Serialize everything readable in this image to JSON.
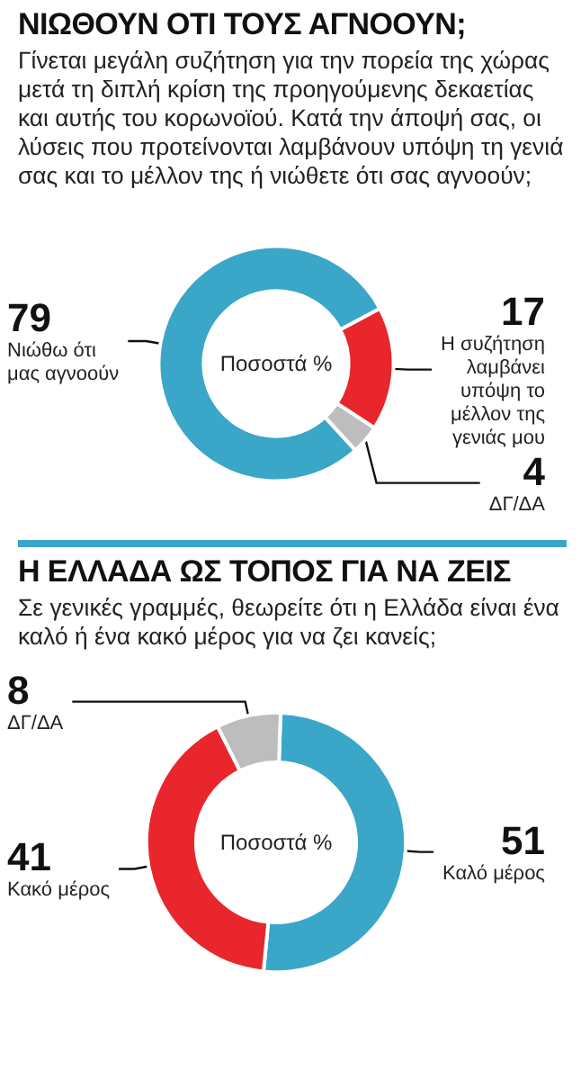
{
  "chart_data": [
    {
      "type": "donut",
      "title": "ΝΙΩΘΟΥΝ ΟΤΙ ΤΟΥΣ ΑΓΝΟΟΥΝ;",
      "subtitle": "Γίνεται μεγάλη συζήτηση για την πορεία της χώρας μετά τη διπλή κρίση της προηγούμενης δεκαετίας και αυτής του κορωνοϊού. Κατά την άποψή σας, οι λύσεις που προτείνονται λαμβάνουν υπόψη τη γενιά σας και το μέλλον της ή νιώθετε ότι σας αγνοούν;",
      "categories": [
        "Η συζήτηση λαμβάνει υπόψη το μέλλον της γενιάς μου",
        "ΔΓ/ΔΑ",
        "Νιώθω ότι μας αγνοούν"
      ],
      "values": [
        17,
        4,
        79
      ],
      "colors": [
        "#e8262b",
        "#bdbdbd",
        "#3aa6c8"
      ],
      "annotations": [
        "Ποσοστά %"
      ],
      "data_labels": true,
      "legend": false
    },
    {
      "type": "donut",
      "title": "Η ΕΛΛΑΔΑ ΩΣ ΤΟΠΟΣ ΓΙΑ ΝΑ ΖΕΙΣ",
      "subtitle": "Σε γενικές γραμμές, θεωρείτε ότι η Ελλάδα είναι ένα καλό ή ένα κακό μέρος για να ζει κανείς;",
      "categories": [
        "Καλό μέρος",
        "Κακό μέρος",
        "ΔΓ/ΔΑ"
      ],
      "values": [
        51,
        41,
        8
      ],
      "colors": [
        "#3aa6c8",
        "#e8262b",
        "#bdbdbd"
      ],
      "annotations": [
        "Ποσοστά %"
      ],
      "data_labels": true,
      "legend": false
    }
  ]
}
